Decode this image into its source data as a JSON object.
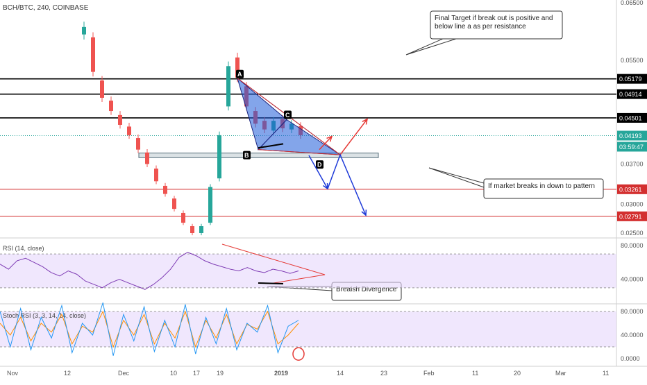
{
  "chart_data": {
    "type": "candlestick",
    "symbol_header": "BCH/BTC, 240, COINBASE",
    "price_axis_ticks": [
      "0.06500",
      "0.05500",
      "0.04500",
      "0.03700",
      "0.03000",
      "0.02500"
    ],
    "price_labels": [
      {
        "text": "0.05179",
        "style": "black",
        "value": 0.05179
      },
      {
        "text": "0.04914",
        "style": "black",
        "value": 0.04914
      },
      {
        "text": "0.04501",
        "style": "black",
        "value": 0.04501
      },
      {
        "text": "0.04193",
        "style": "green",
        "value": 0.04193
      },
      {
        "text": "03:59:47",
        "style": "green"
      },
      {
        "text": "0.03261",
        "style": "red",
        "value": 0.03261
      },
      {
        "text": "0.02791",
        "style": "red",
        "value": 0.02791
      }
    ],
    "horizontal_lines": [
      {
        "value": 0.05179,
        "color": "#000000"
      },
      {
        "value": 0.04914,
        "color": "#000000"
      },
      {
        "value": 0.04501,
        "color": "#000000"
      },
      {
        "value": 0.04193,
        "color": "#26a69a",
        "dotted": true
      },
      {
        "value": 0.03261,
        "color": "#d32f2f"
      },
      {
        "value": 0.02791,
        "color": "#d32f2f"
      }
    ],
    "support_zone": {
      "from": 0.0381,
      "to": 0.0389
    },
    "time_axis_labels": [
      "Nov",
      "12",
      "Dec",
      "10",
      "17",
      "19",
      "2019",
      "14",
      "23",
      "Feb",
      "11",
      "20",
      "Mar",
      "11"
    ],
    "price_path": [
      [
        0.0595,
        0.0608
      ],
      [
        0.059,
        0.053
      ],
      [
        0.0515,
        0.0485
      ],
      [
        0.048,
        0.0462
      ],
      [
        0.0455,
        0.0438
      ],
      [
        0.0435,
        0.042
      ],
      [
        0.0415,
        0.0395
      ],
      [
        0.039,
        0.037
      ],
      [
        0.0362,
        0.034
      ],
      [
        0.0332,
        0.0318
      ],
      [
        0.031,
        0.0292
      ],
      [
        0.0285,
        0.0268
      ],
      [
        0.0262,
        0.025
      ],
      [
        0.025,
        0.0262
      ],
      [
        0.0268,
        0.033
      ],
      [
        0.0345,
        0.042
      ],
      [
        0.047,
        0.054
      ],
      [
        0.0555,
        0.052
      ],
      [
        0.0505,
        0.047
      ],
      [
        0.0462,
        0.044
      ],
      [
        0.0445,
        0.043
      ],
      [
        0.0428,
        0.0445
      ],
      [
        0.0448,
        0.0432
      ],
      [
        0.043,
        0.044
      ],
      [
        0.0436,
        0.042
      ]
    ],
    "pattern_points": [
      "A",
      "B",
      "C",
      "D"
    ],
    "annotations": [
      "Final Target if break out is positive and below line a as per resistance",
      "If market breaks in down to pattern",
      "Breaish Divergence"
    ],
    "rsi": {
      "label": "RSI (14, close)",
      "axis_ticks": [
        "80.0000",
        "40.0000"
      ],
      "levels": [
        70,
        30
      ],
      "values": [
        58,
        52,
        62,
        65,
        60,
        55,
        48,
        44,
        50,
        46,
        38,
        34,
        30,
        36,
        40,
        36,
        32,
        28,
        34,
        42,
        52,
        66,
        72,
        68,
        62,
        58,
        55,
        52,
        50,
        54,
        50,
        48,
        52,
        50,
        47,
        50
      ]
    },
    "stoch_rsi": {
      "label": "Stoch RSI (3, 3, 14, 14, close)",
      "axis_ticks": [
        "80.0000",
        "40.0000",
        "0.0000"
      ],
      "levels": [
        80,
        20
      ],
      "k_values": [
        80,
        20,
        85,
        15,
        70,
        35,
        90,
        10,
        60,
        40,
        95,
        5,
        75,
        30,
        88,
        12,
        65,
        20,
        92,
        8,
        70,
        25,
        85,
        15,
        60,
        45,
        90,
        10,
        55,
        65
      ],
      "d_values": [
        60,
        40,
        70,
        30,
        60,
        45,
        75,
        25,
        55,
        45,
        80,
        20,
        65,
        40,
        75,
        25,
        60,
        35,
        80,
        20,
        65,
        35,
        75,
        25,
        58,
        50,
        80,
        25,
        40,
        60
      ]
    }
  }
}
